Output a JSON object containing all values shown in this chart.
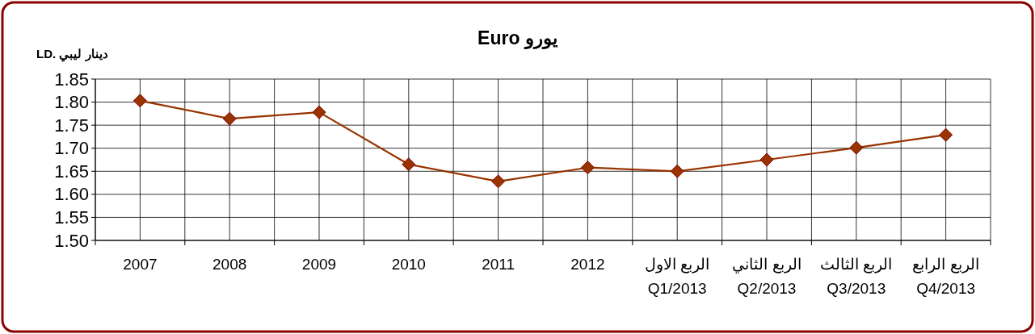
{
  "chart_data": {
    "type": "line",
    "title": "Euro يورو",
    "ylabel": "LD. دينار ليبي",
    "categories": [
      "2007",
      "2008",
      "2009",
      "2010",
      "2011",
      "2012",
      "الربع الاول\nQ1/2013",
      "الربع الثاني\nQ2/2013",
      "الربع الثالث\nQ3/2013",
      "الربع الرابع\nQ4/2013"
    ],
    "series": [
      {
        "color": "#993300",
        "values": [
          1.803,
          1.764,
          1.778,
          1.665,
          1.628,
          1.658,
          1.65,
          1.675,
          1.701,
          1.729
        ]
      }
    ],
    "ylim": [
      1.5,
      1.85
    ],
    "yticks": [
      {
        "value": 1.5,
        "label": "1.50"
      },
      {
        "value": 1.55,
        "label": "1.55"
      },
      {
        "value": 1.6,
        "label": "1.60"
      },
      {
        "value": 1.65,
        "label": "1.65"
      },
      {
        "value": 1.7,
        "label": "1.70"
      },
      {
        "value": 1.75,
        "label": "1.75"
      },
      {
        "value": 1.8,
        "label": "1.80"
      },
      {
        "value": 1.85,
        "label": "1.85"
      }
    ],
    "grid": true,
    "marker": "diamond",
    "line_style": "solid"
  }
}
